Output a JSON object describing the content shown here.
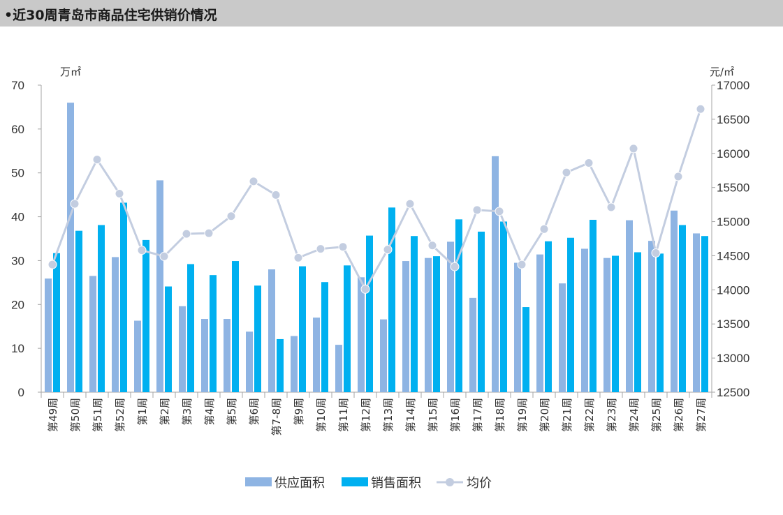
{
  "header": {
    "title": "•近30周青岛市商品住宅供销价情况"
  },
  "chart_data": {
    "type": "bar+line",
    "title": "近30周青岛市商品住宅供销价情况",
    "left_unit": "万㎡",
    "right_unit": "元/㎡",
    "ylim_left": [
      0,
      70
    ],
    "yticks_left": [
      "0",
      "10",
      "20",
      "30",
      "40",
      "50",
      "60",
      "70"
    ],
    "ylim_right": [
      12500,
      17000
    ],
    "yticks_right": [
      "12500",
      "13000",
      "13500",
      "14000",
      "14500",
      "15000",
      "15500",
      "16000",
      "16500",
      "17000"
    ],
    "categories": [
      "第49周",
      "第50周",
      "第51周",
      "第52周",
      "第1周",
      "第2周",
      "第3周",
      "第4周",
      "第5周",
      "第6周",
      "第7-8周",
      "第9周",
      "第10周",
      "第11周",
      "第12周",
      "第13周",
      "第14周",
      "第15周",
      "第16周",
      "第17周",
      "第18周",
      "第19周",
      "第20周",
      "第21周",
      "第22周",
      "第23周",
      "第24周",
      "第25周",
      "第26周",
      "第27周"
    ],
    "series": [
      {
        "name": "供应面积",
        "type": "bar",
        "axis": "left",
        "color": "#8eb4e3",
        "values": [
          25.9,
          66.0,
          26.5,
          30.8,
          16.3,
          48.3,
          19.6,
          16.7,
          16.7,
          13.8,
          28.0,
          12.8,
          17.0,
          10.8,
          26.2,
          16.6,
          29.9,
          30.6,
          34.3,
          21.5,
          53.8,
          29.5,
          31.4,
          24.8,
          32.7,
          30.6,
          39.2,
          34.5,
          41.4,
          36.2
        ]
      },
      {
        "name": "销售面积",
        "type": "bar",
        "axis": "left",
        "color": "#00b0f0",
        "values": [
          31.7,
          36.8,
          38.1,
          43.2,
          34.7,
          24.1,
          29.2,
          26.7,
          29.9,
          24.3,
          12.1,
          28.7,
          25.1,
          28.9,
          35.7,
          42.1,
          35.6,
          31.0,
          39.4,
          36.6,
          38.9,
          19.4,
          34.4,
          35.2,
          39.3,
          31.1,
          31.9,
          31.6,
          38.1,
          35.6
        ]
      },
      {
        "name": "均价",
        "type": "line",
        "axis": "right",
        "color": "#c3cde0",
        "values": [
          14370,
          15260,
          15910,
          15410,
          14580,
          14490,
          14820,
          14830,
          15080,
          15590,
          15390,
          14470,
          14600,
          14630,
          14010,
          14590,
          15260,
          14650,
          14340,
          15170,
          15150,
          14370,
          14890,
          15720,
          15860,
          15210,
          16070,
          14540,
          15660,
          16650
        ]
      }
    ],
    "legend": {
      "position": "bottom-center",
      "items": [
        "供应面积",
        "销售面积",
        "均价"
      ]
    }
  }
}
